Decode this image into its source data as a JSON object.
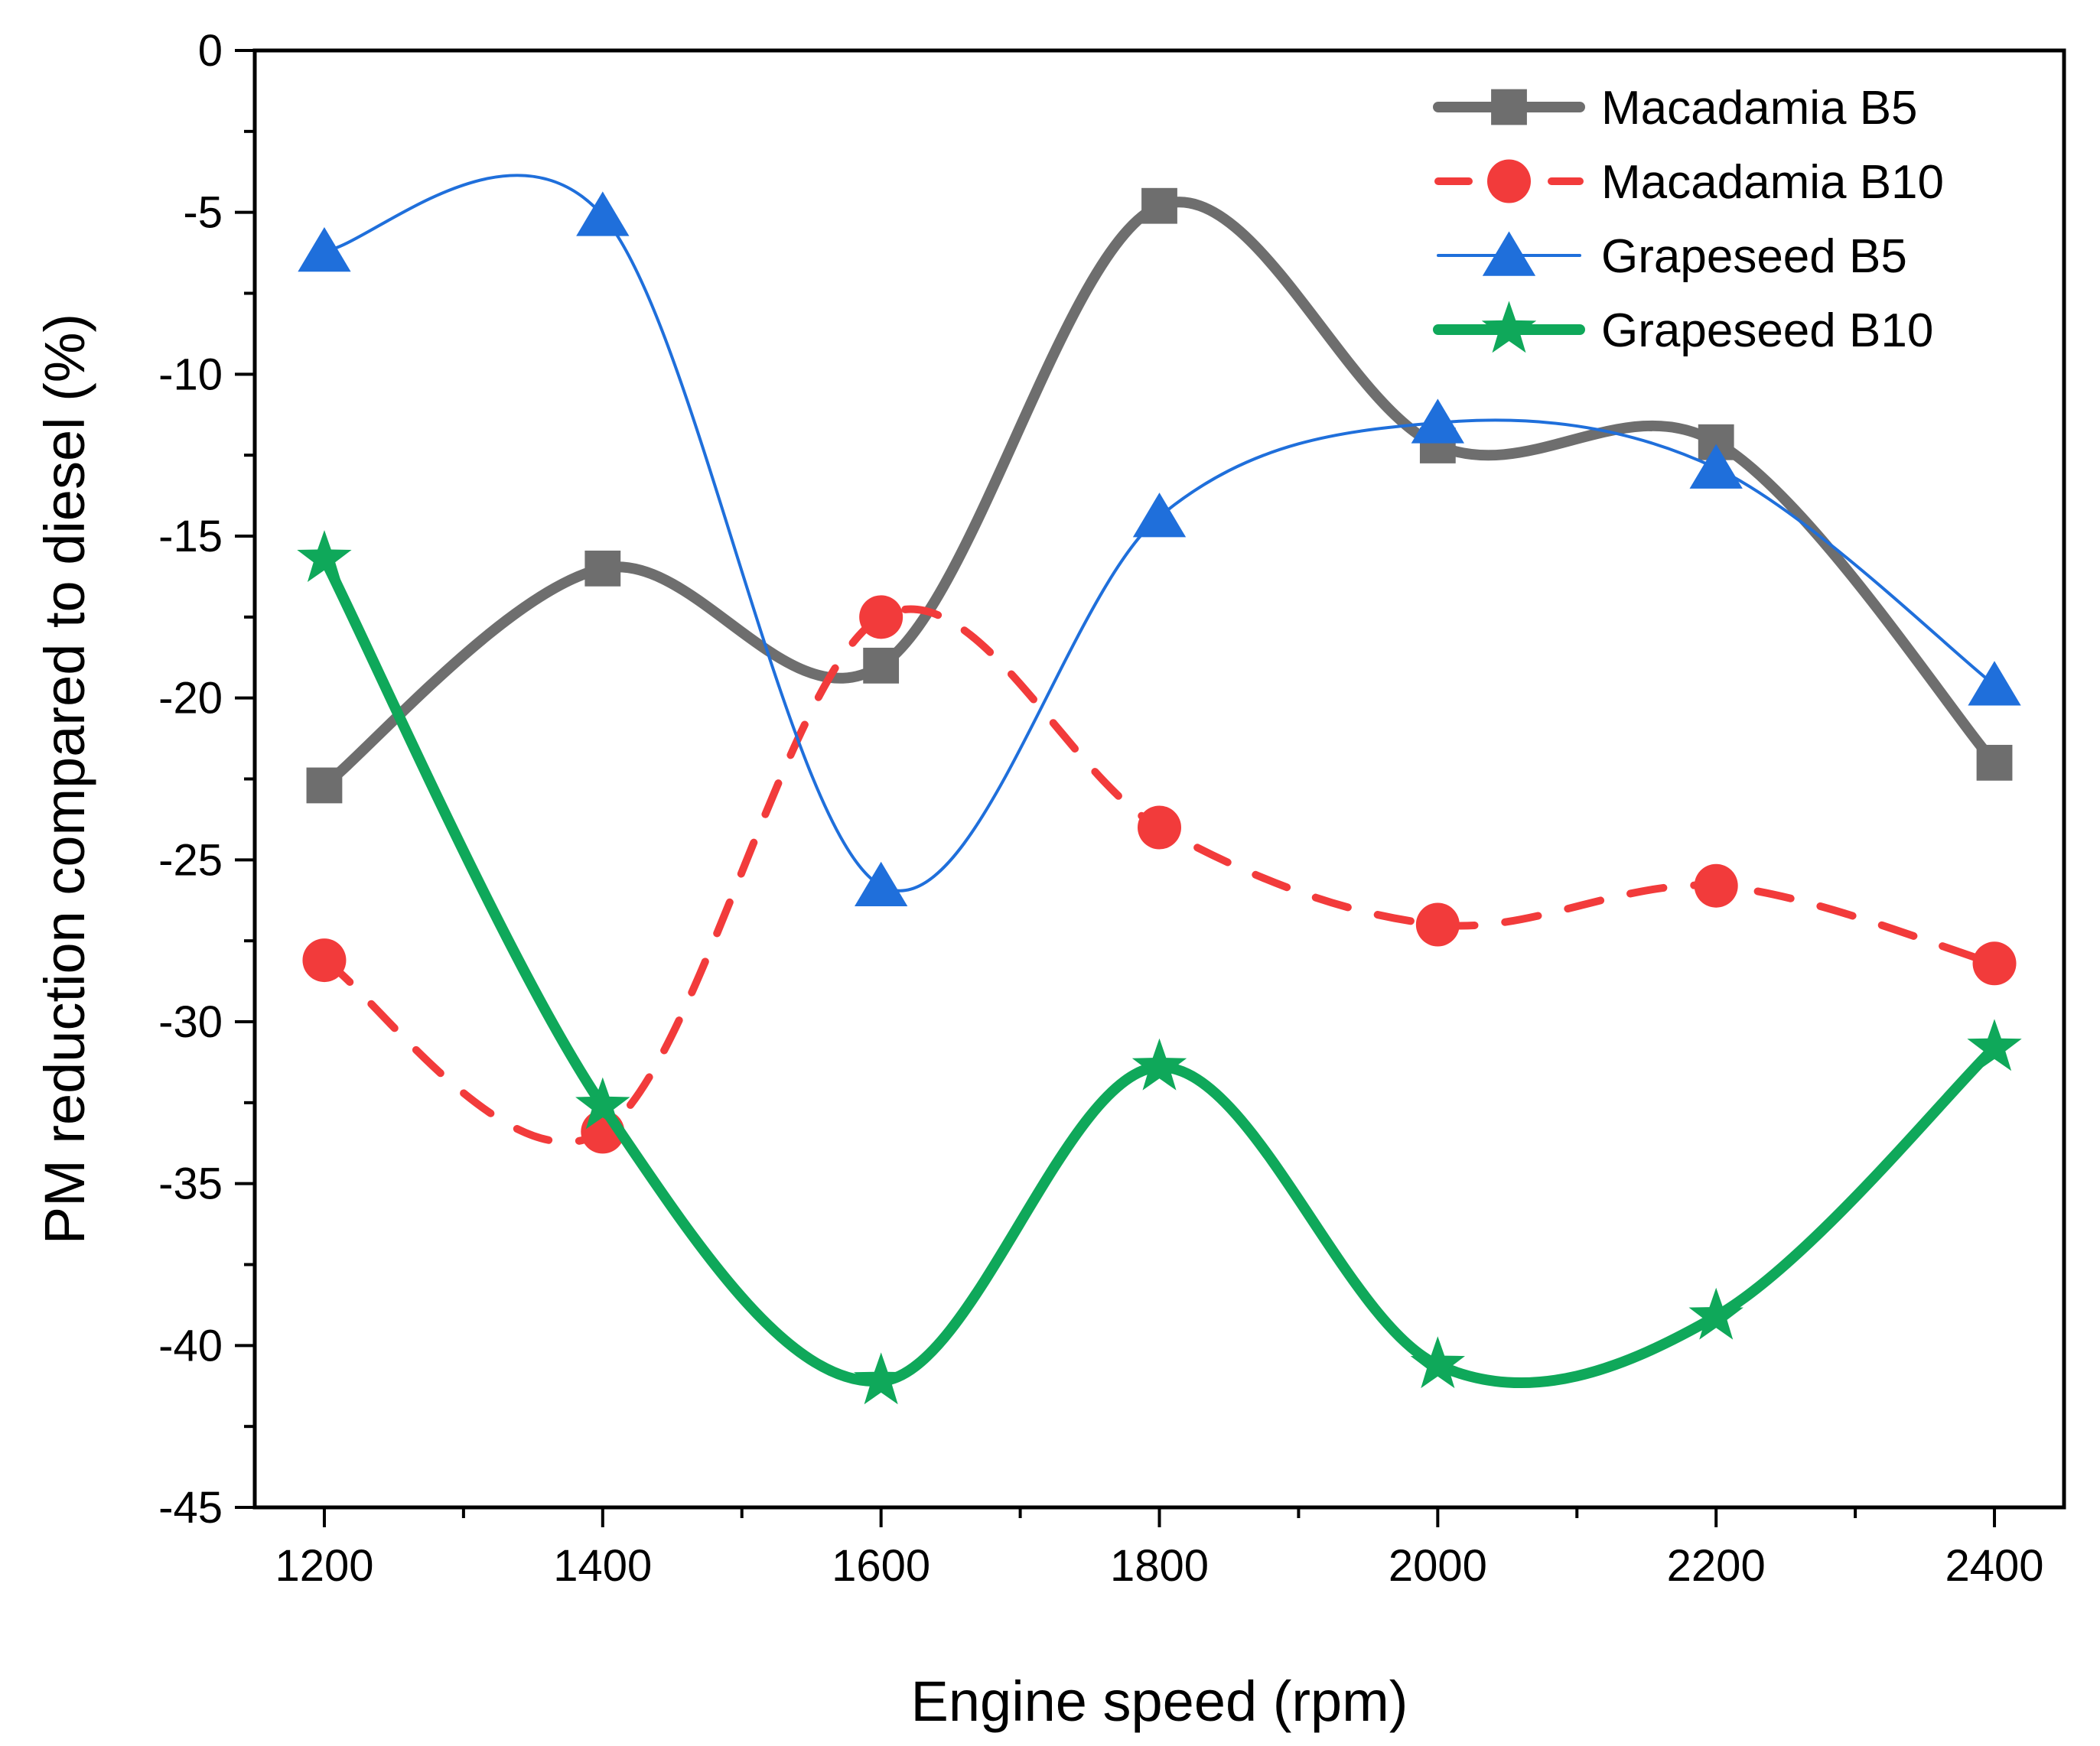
{
  "chart_data": {
    "type": "line",
    "title": "",
    "xlabel": "Engine speed (rpm)",
    "ylabel": "PM reduction compared to diesel (%)",
    "xlim": [
      1150,
      2450
    ],
    "ylim": [
      -45,
      0
    ],
    "x": [
      1200,
      1400,
      1600,
      1800,
      2000,
      2200,
      2400
    ],
    "x_ticks": [
      1200,
      1400,
      1600,
      1800,
      2000,
      2200,
      2400
    ],
    "x_tick_labels": [
      "1200",
      "1400",
      "1600",
      "1800",
      "2000",
      "2200",
      "2400"
    ],
    "y_ticks": [
      0,
      -5,
      -10,
      -15,
      -20,
      -25,
      -30,
      -35,
      -40,
      -45
    ],
    "y_tick_labels": [
      "0",
      "-5",
      "-10",
      "-15",
      "-20",
      "-25",
      "-30",
      "-35",
      "-40",
      "-45"
    ],
    "legend_position": "top-right",
    "grid": false,
    "series": [
      {
        "name": "Macadamia B5",
        "color": "#6e6e6e",
        "marker": "square",
        "line_style": "solid",
        "line_weight": "thick",
        "values": [
          -22.7,
          -16.0,
          -19.0,
          -4.8,
          -12.2,
          -12.1,
          -22.0
        ]
      },
      {
        "name": "Macadamia B10",
        "color": "#f23b3b",
        "marker": "circle",
        "line_style": "dashed",
        "line_weight": "medium",
        "values": [
          -28.1,
          -33.4,
          -17.5,
          -24.0,
          -27.0,
          -25.8,
          -28.2
        ]
      },
      {
        "name": "Grapeseed B5",
        "color": "#1f6fdb",
        "marker": "triangle",
        "line_style": "solid",
        "line_weight": "thin",
        "values": [
          -6.2,
          -5.1,
          -25.8,
          -14.4,
          -11.5,
          -12.9,
          -19.6
        ]
      },
      {
        "name": "Grapeseed B10",
        "color": "#0fa85a",
        "marker": "star",
        "line_style": "solid",
        "line_weight": "thick",
        "values": [
          -15.7,
          -32.6,
          -41.1,
          -31.4,
          -40.6,
          -39.1,
          -30.8
        ]
      }
    ]
  }
}
